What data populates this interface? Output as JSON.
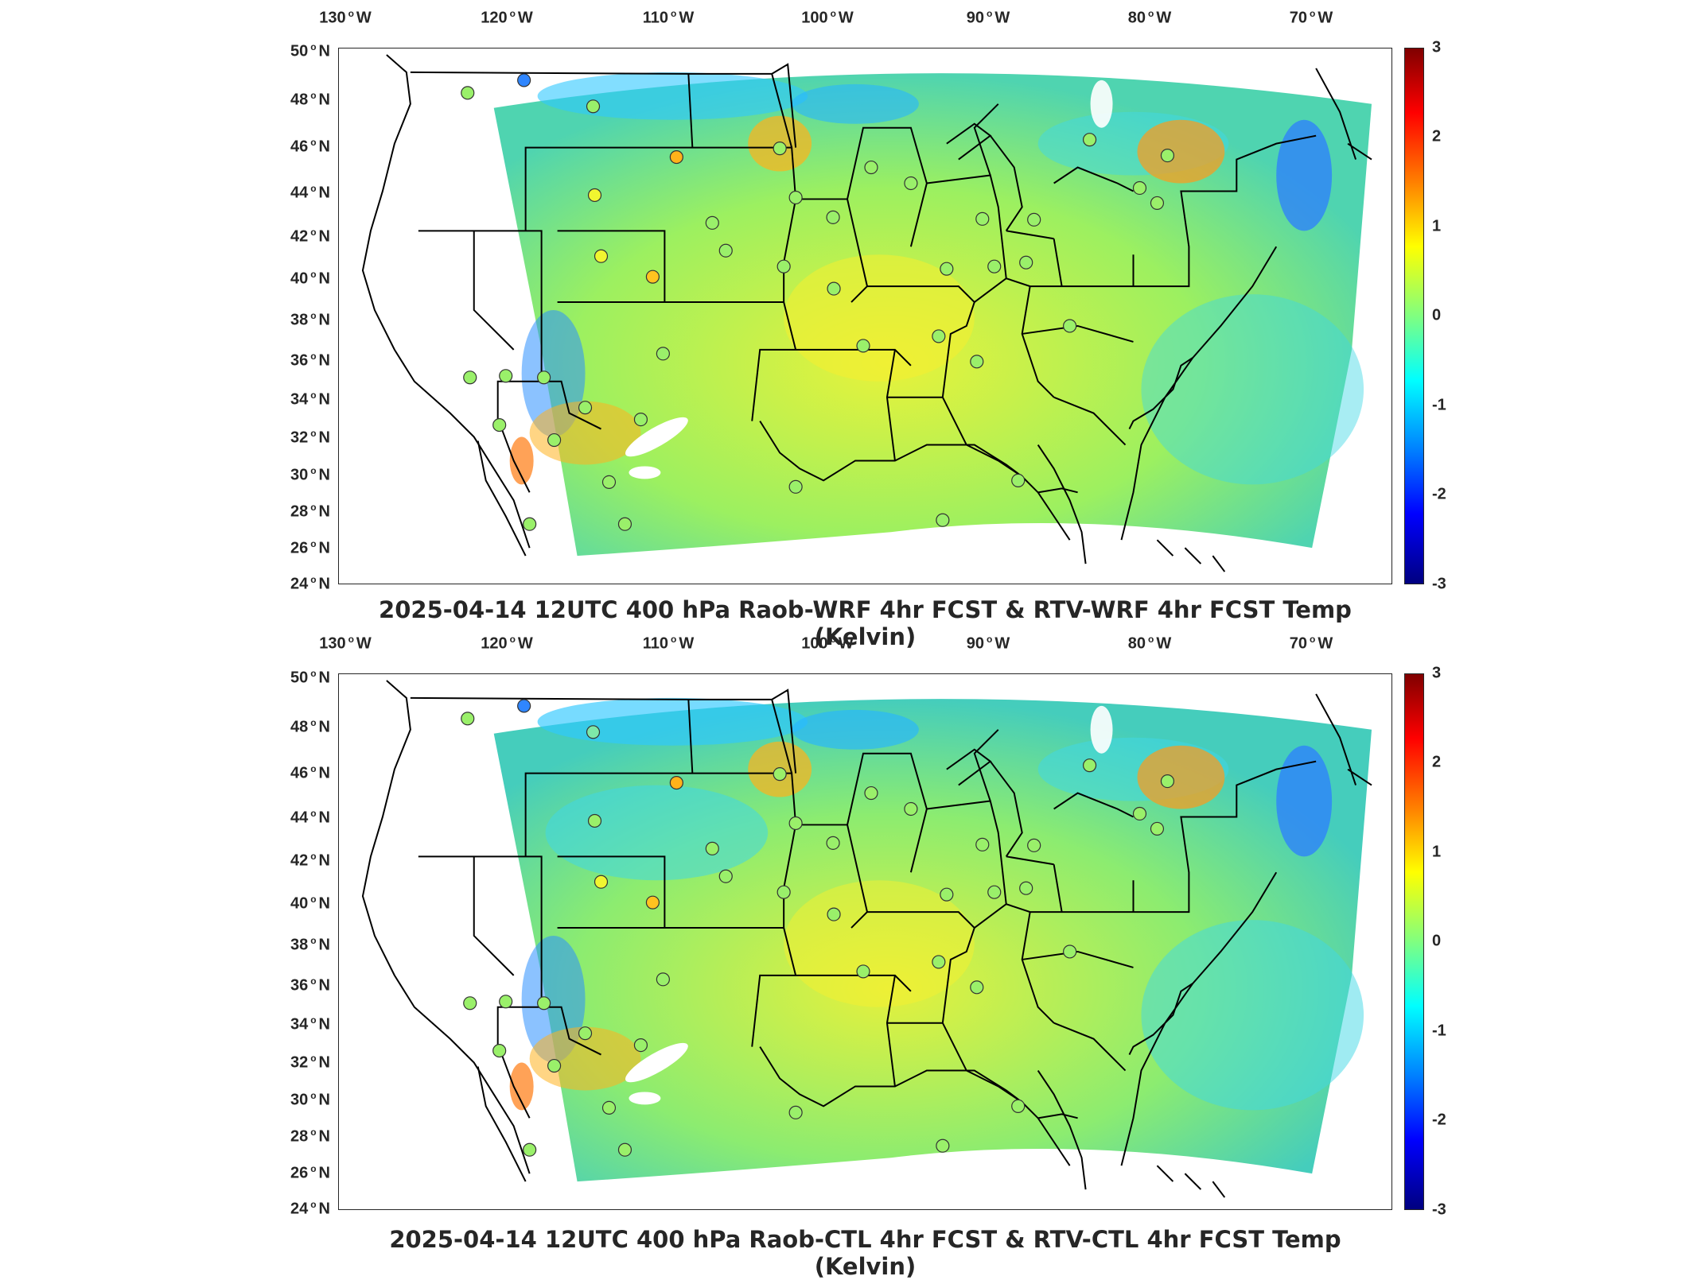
{
  "colorbar": {
    "ticks": [
      "3",
      "2",
      "1",
      "0",
      "-1",
      "-2",
      "-3"
    ],
    "range": [
      -3,
      3
    ],
    "colormap": "jet",
    "colors": [
      "#800000",
      "#ff0000",
      "#ff8000",
      "#ffff00",
      "#80ff80",
      "#00ffff",
      "#0080ff",
      "#0000ff",
      "#000080"
    ]
  },
  "axes": {
    "lon_ticks": [
      {
        "value": "130",
        "hemi": "W"
      },
      {
        "value": "120",
        "hemi": "W"
      },
      {
        "value": "110",
        "hemi": "W"
      },
      {
        "value": "100",
        "hemi": "W"
      },
      {
        "value": "90",
        "hemi": "W"
      },
      {
        "value": "80",
        "hemi": "W"
      },
      {
        "value": "70",
        "hemi": "W"
      }
    ],
    "lat_ticks": [
      {
        "value": "50",
        "hemi": "N"
      },
      {
        "value": "48",
        "hemi": "N"
      },
      {
        "value": "46",
        "hemi": "N"
      },
      {
        "value": "44",
        "hemi": "N"
      },
      {
        "value": "42",
        "hemi": "N"
      },
      {
        "value": "40",
        "hemi": "N"
      },
      {
        "value": "38",
        "hemi": "N"
      },
      {
        "value": "36",
        "hemi": "N"
      },
      {
        "value": "34",
        "hemi": "N"
      },
      {
        "value": "32",
        "hemi": "N"
      },
      {
        "value": "30",
        "hemi": "N"
      },
      {
        "value": "28",
        "hemi": "N"
      },
      {
        "value": "26",
        "hemi": "N"
      },
      {
        "value": "24",
        "hemi": "N"
      }
    ]
  },
  "panels": [
    {
      "title": "2025-04-14 12UTC 400 hPa Raob-WRF 4hr FCST & RTV-WRF 4hr FCST Temp (Kelvin)"
    },
    {
      "title": "2025-04-14 12UTC 400 hPa Raob-CTL 4hr FCST & RTV-CTL 4hr FCST Temp (Kelvin)"
    }
  ]
}
